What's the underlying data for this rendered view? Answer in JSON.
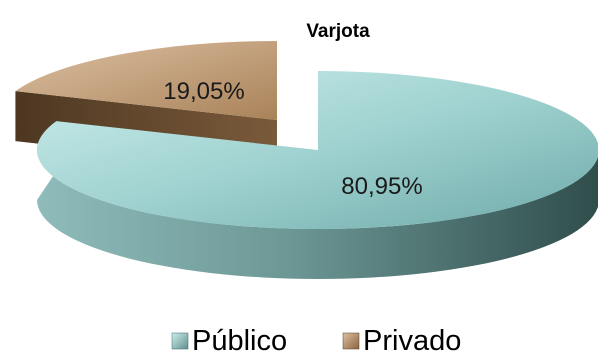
{
  "chart_data": {
    "type": "pie",
    "title": "Varjota",
    "slices": [
      {
        "label": "Público",
        "value": 80.95,
        "display": "80,95%",
        "color": "#9ed3d1"
      },
      {
        "label": "Privado",
        "value": 19.05,
        "display": "19,05%",
        "color": "#c9a583"
      }
    ],
    "exploded": "Privado",
    "three_d": true,
    "legend_position": "bottom"
  }
}
